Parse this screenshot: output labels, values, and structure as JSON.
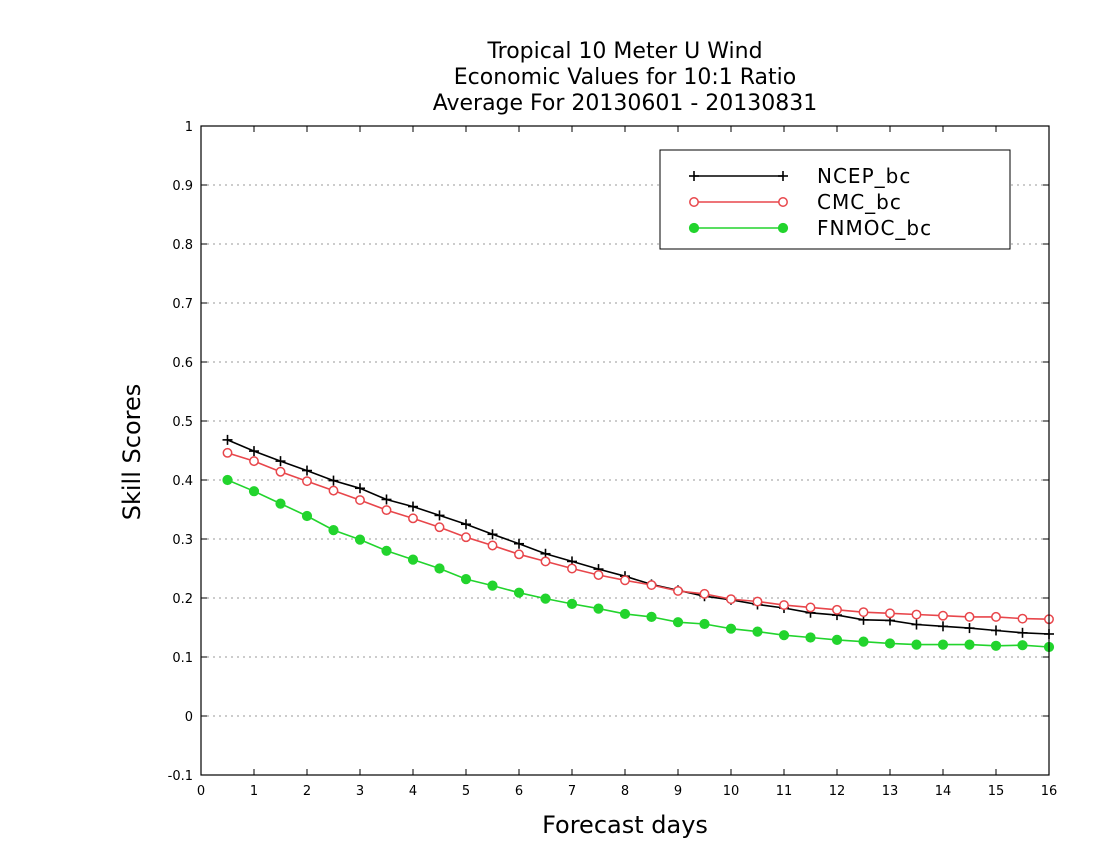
{
  "chart_data": {
    "type": "line",
    "title": [
      "Tropical 10 Meter U Wind",
      "Economic Values for 10:1 Ratio",
      "Average For 20130601 - 20130831"
    ],
    "xlabel": "Forecast days",
    "ylabel": "Skill Scores",
    "xlim": [
      0,
      16
    ],
    "ylim": [
      -0.1,
      1
    ],
    "x_ticks": [
      0,
      1,
      2,
      3,
      4,
      5,
      6,
      7,
      8,
      9,
      10,
      11,
      12,
      13,
      14,
      15,
      16
    ],
    "y_ticks": [
      -0.1,
      0,
      0.1,
      0.2,
      0.3,
      0.4,
      0.5,
      0.6,
      0.7,
      0.8,
      0.9,
      1
    ],
    "y_tick_labels": [
      "-0.1",
      "0",
      "0.1",
      "0.2",
      "0.3",
      "0.4",
      "0.5",
      "0.6",
      "0.7",
      "0.8",
      "0.9",
      "1"
    ],
    "grid": true,
    "legend_position": "top-right",
    "x": [
      0.5,
      1,
      1.5,
      2,
      2.5,
      3,
      3.5,
      4,
      4.5,
      5,
      5.5,
      6,
      6.5,
      7,
      7.5,
      8,
      8.5,
      9,
      9.5,
      10,
      10.5,
      11,
      11.5,
      12,
      12.5,
      13,
      13.5,
      14,
      14.5,
      15,
      15.5,
      16
    ],
    "series": [
      {
        "name": "NCEP_bc",
        "color": "#000000",
        "marker": "plus",
        "values": [
          0.468,
          0.449,
          0.432,
          0.416,
          0.399,
          0.386,
          0.367,
          0.355,
          0.34,
          0.325,
          0.308,
          0.292,
          0.275,
          0.262,
          0.249,
          0.237,
          0.223,
          0.213,
          0.203,
          0.197,
          0.189,
          0.183,
          0.175,
          0.171,
          0.163,
          0.162,
          0.155,
          0.152,
          0.149,
          0.145,
          0.141,
          0.139
        ]
      },
      {
        "name": "CMC_bc",
        "color": "#e8464b",
        "marker": "open-circle",
        "values": [
          0.446,
          0.432,
          0.414,
          0.398,
          0.382,
          0.366,
          0.349,
          0.335,
          0.32,
          0.303,
          0.289,
          0.274,
          0.262,
          0.25,
          0.239,
          0.23,
          0.222,
          0.212,
          0.207,
          0.198,
          0.194,
          0.188,
          0.184,
          0.18,
          0.176,
          0.174,
          0.172,
          0.17,
          0.168,
          0.168,
          0.165,
          0.164
        ]
      },
      {
        "name": "FNMOC_bc",
        "color": "#22d42d",
        "marker": "filled-circle",
        "values": [
          0.4,
          0.381,
          0.36,
          0.339,
          0.315,
          0.299,
          0.28,
          0.265,
          0.25,
          0.232,
          0.221,
          0.209,
          0.199,
          0.19,
          0.182,
          0.173,
          0.168,
          0.159,
          0.156,
          0.148,
          0.143,
          0.137,
          0.133,
          0.129,
          0.126,
          0.123,
          0.121,
          0.121,
          0.121,
          0.119,
          0.12,
          0.117
        ]
      }
    ]
  }
}
